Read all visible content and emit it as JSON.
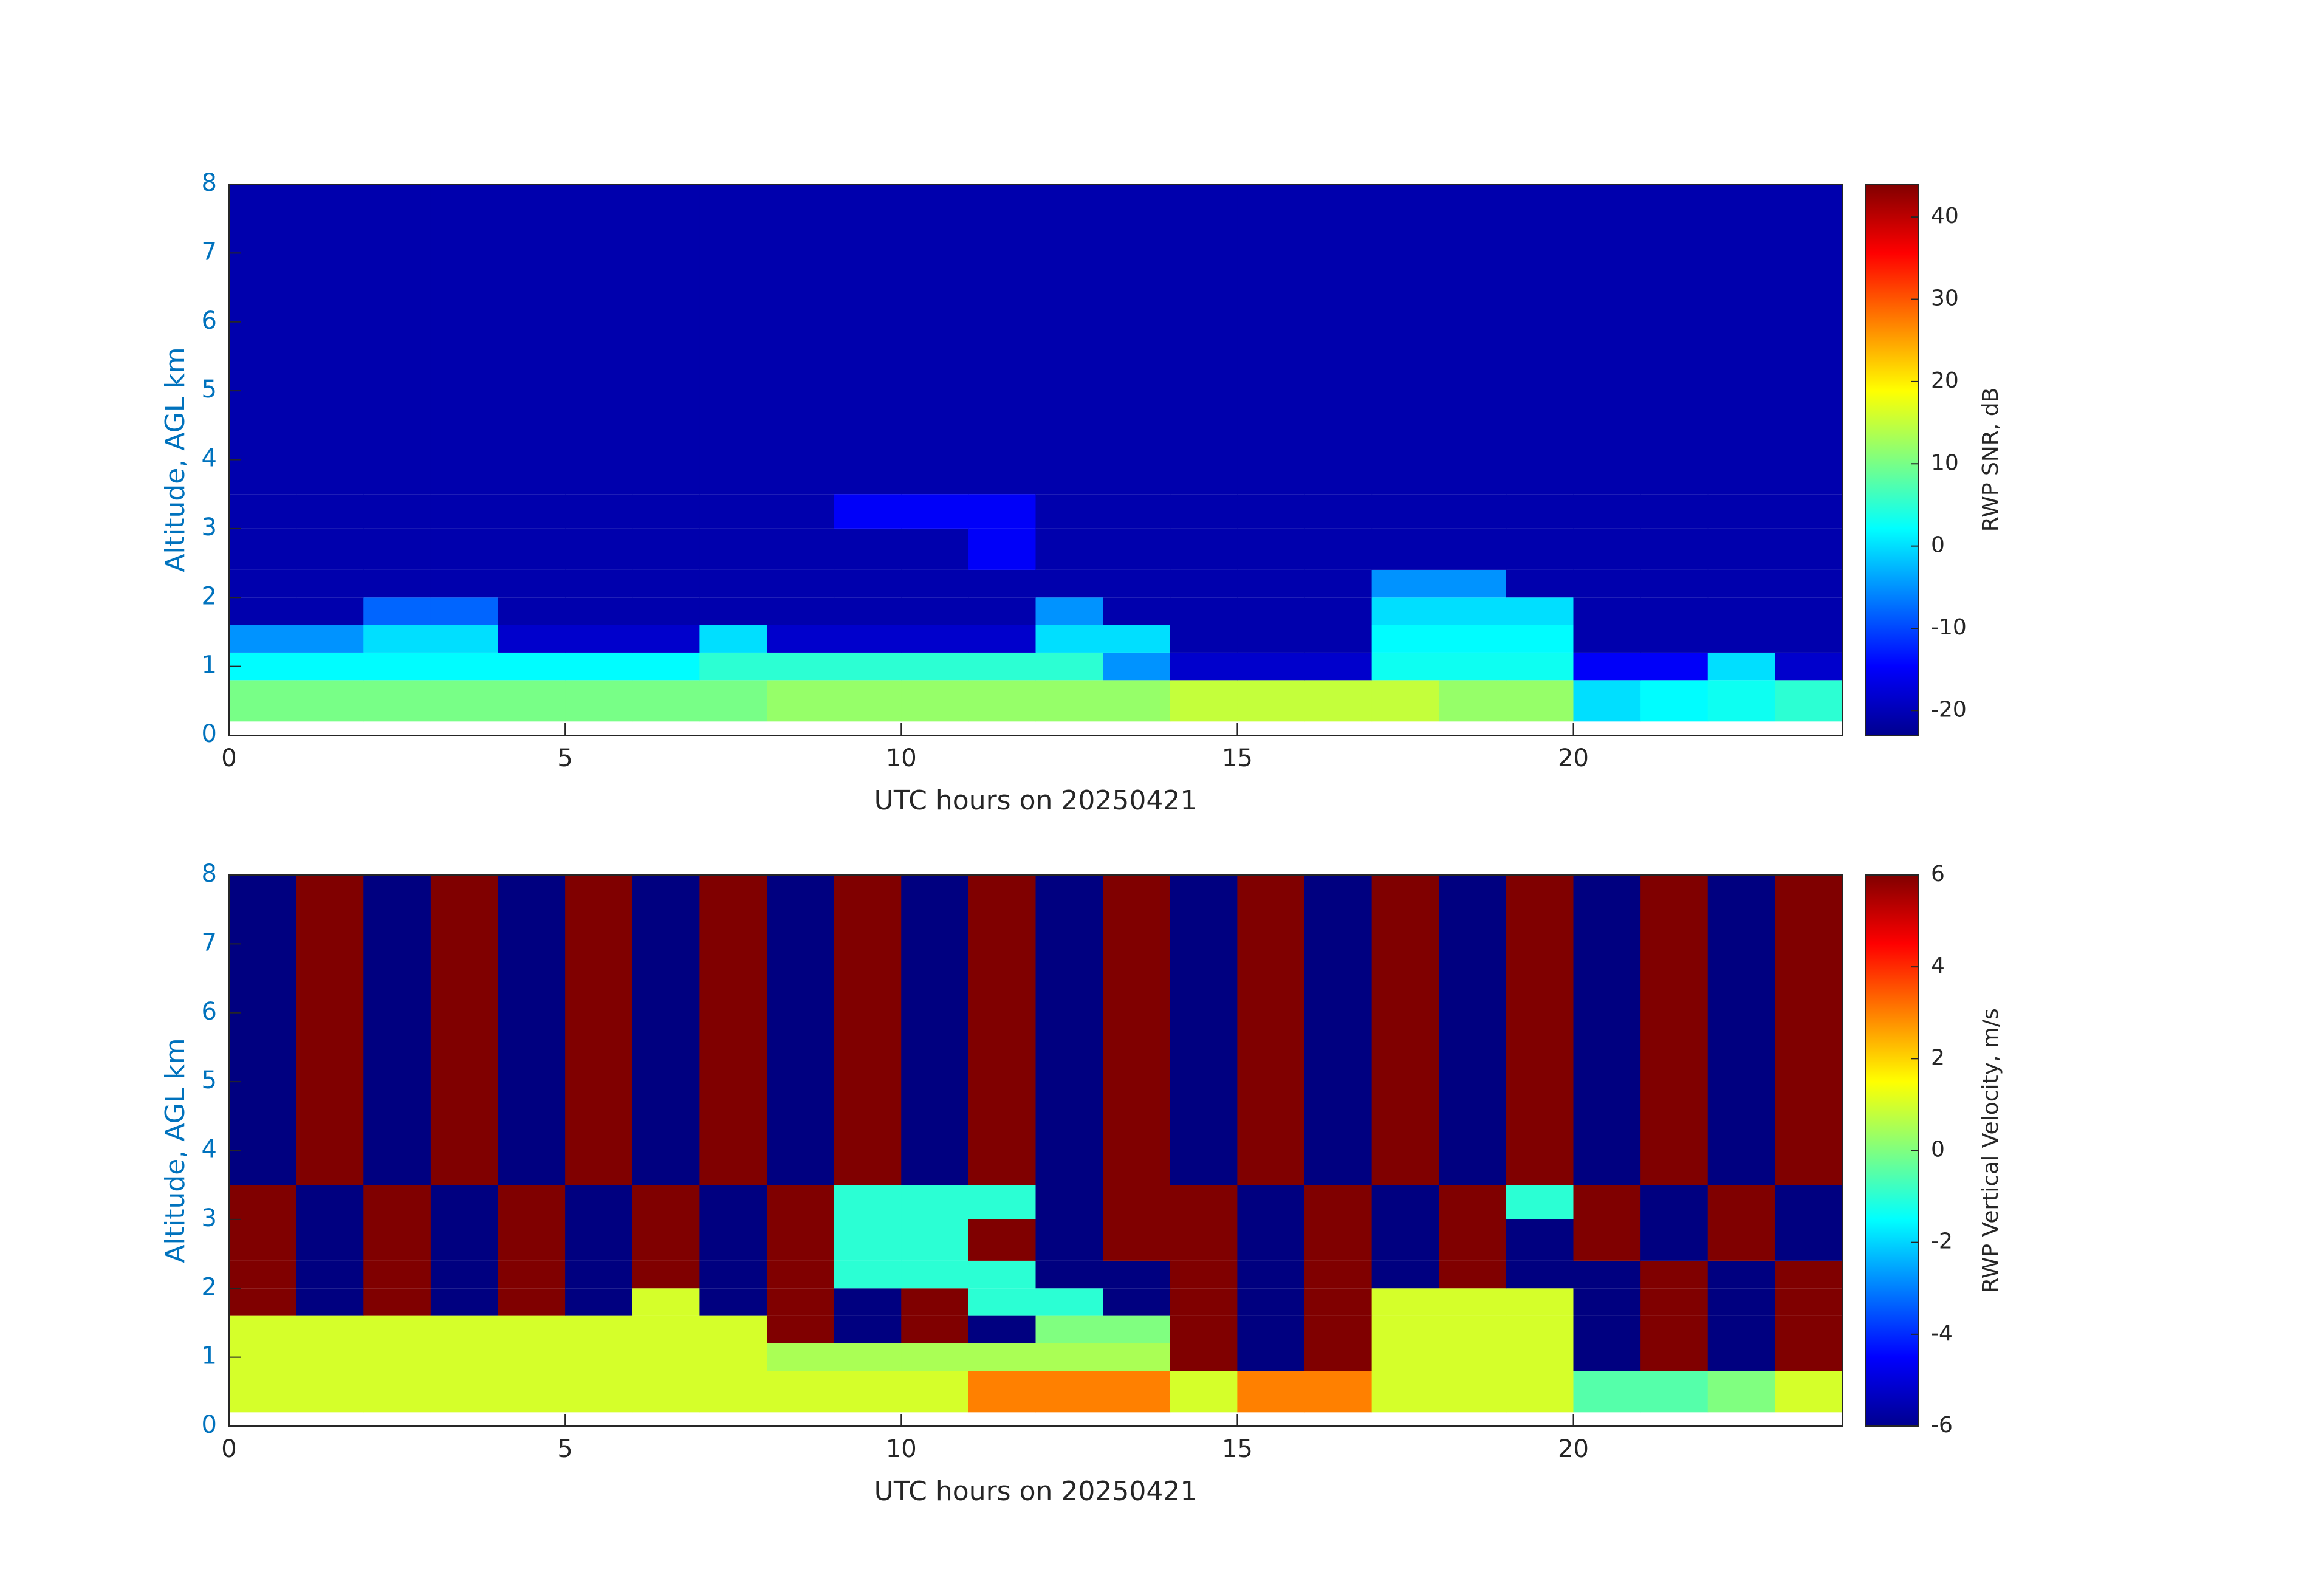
{
  "chart_data": [
    {
      "type": "heatmap",
      "xlabel": "UTC hours on 20250421",
      "ylabel": "Altitude, AGL km",
      "colorbar_label": "RWP SNR, dB",
      "colormap": "jet",
      "x": [
        0,
        1,
        2,
        3,
        4,
        5,
        6,
        7,
        8,
        9,
        10,
        11,
        12,
        13,
        14,
        15,
        16,
        17,
        18,
        19,
        20,
        21,
        22,
        23,
        24
      ],
      "y": [
        0.2,
        0.8,
        1.2,
        1.6,
        2,
        2.4,
        3,
        3.5,
        8
      ],
      "z": [
        [
          10,
          10,
          10,
          10,
          10,
          10,
          10,
          10,
          12,
          12,
          12,
          12,
          12,
          12,
          15,
          15,
          15,
          15,
          12,
          12,
          0,
          2,
          3,
          5
        ],
        [
          2,
          2,
          2,
          2,
          2,
          2,
          2,
          5,
          5,
          5,
          5,
          5,
          5,
          -5,
          -18,
          -18,
          -18,
          3,
          3,
          3,
          -15,
          -15,
          0,
          -18
        ],
        [
          -5,
          -5,
          0,
          0,
          -18,
          -18,
          -18,
          0,
          -18,
          -18,
          -18,
          -18,
          0,
          0,
          -20,
          -20,
          -20,
          2,
          2,
          2,
          -20,
          -20,
          -20,
          -20
        ],
        [
          -20,
          -20,
          -8,
          -8,
          -20,
          -20,
          -20,
          -20,
          -20,
          -20,
          -20,
          -20,
          -5,
          -20,
          -20,
          -20,
          -20,
          0,
          0,
          0,
          -20,
          -20,
          -20,
          -20
        ],
        [
          -20,
          -20,
          -20,
          -20,
          -20,
          -20,
          -20,
          -20,
          -20,
          -20,
          -20,
          -20,
          -20,
          -20,
          -20,
          -20,
          -20,
          -5,
          -5,
          -20,
          -20,
          -20,
          -20,
          -20
        ],
        [
          -20,
          -20,
          -20,
          -20,
          -20,
          -20,
          -20,
          -20,
          -20,
          -20,
          -20,
          -15,
          -20,
          -20,
          -20,
          -20,
          -20,
          -20,
          -20,
          -20,
          -20,
          -20,
          -20,
          -20
        ],
        [
          -20,
          -20,
          -20,
          -20,
          -20,
          -20,
          -20,
          -20,
          -20,
          -15,
          -15,
          -15,
          -20,
          -20,
          -20,
          -20,
          -20,
          -20,
          -20,
          -20,
          -20,
          -20,
          -20,
          -20
        ],
        [
          -20,
          -20,
          -20,
          -20,
          -20,
          -20,
          -20,
          -20,
          -20,
          -20,
          -20,
          -20,
          -20,
          -20,
          -20,
          -20,
          -20,
          -20,
          -20,
          -20,
          -20,
          -20,
          -20,
          -20
        ]
      ],
      "xlim": [
        0,
        24
      ],
      "ylim": [
        0,
        8
      ],
      "xticks": [
        0,
        5,
        10,
        15,
        20
      ],
      "yticks": [
        0,
        1,
        2,
        3,
        4,
        5,
        6,
        7,
        8
      ],
      "clim": [
        -23,
        44
      ],
      "cticks": [
        -20,
        -10,
        0,
        10,
        20,
        30,
        40
      ]
    },
    {
      "type": "heatmap",
      "xlabel": "UTC hours on 20250421",
      "ylabel": "Altitude, AGL km",
      "colorbar_label": "RWP Vertical Velocity, m/s",
      "colormap": "jet",
      "x": [
        0,
        1,
        2,
        3,
        4,
        5,
        6,
        7,
        8,
        9,
        10,
        11,
        12,
        13,
        14,
        15,
        16,
        17,
        18,
        19,
        20,
        21,
        22,
        23,
        24
      ],
      "y": [
        0.2,
        0.8,
        1.2,
        1.6,
        2,
        2.4,
        3,
        3.5,
        8
      ],
      "z": [
        [
          1,
          1,
          1,
          1,
          1,
          1,
          1,
          1,
          1,
          1,
          1,
          3,
          3,
          3,
          1,
          3,
          3,
          1,
          1,
          1,
          -0.5,
          -0.5,
          0,
          1
        ],
        [
          1,
          1,
          1,
          1,
          1,
          1,
          1,
          1,
          0.5,
          0.5,
          0.5,
          0.5,
          0.5,
          0.5,
          6,
          -6,
          6,
          1,
          1,
          1,
          -6,
          6,
          -6,
          6
        ],
        [
          1,
          1,
          1,
          1,
          1,
          1,
          1,
          1,
          6,
          -6,
          6,
          -6,
          0,
          0,
          6,
          -6,
          6,
          1,
          1,
          1,
          -6,
          6,
          -6,
          6
        ],
        [
          6,
          -6,
          6,
          -6,
          6,
          -6,
          1,
          -6,
          6,
          -6,
          6,
          -1,
          -1,
          -6,
          6,
          -6,
          6,
          1,
          1,
          1,
          -6,
          6,
          -6,
          6
        ],
        [
          6,
          -6,
          6,
          -6,
          6,
          -6,
          6,
          -6,
          6,
          -1,
          -1,
          -1,
          -6,
          -6,
          6,
          -6,
          6,
          -6,
          6,
          -6,
          -6,
          6,
          -6,
          6
        ],
        [
          6,
          -6,
          6,
          -6,
          6,
          -6,
          6,
          -6,
          6,
          -1,
          -1,
          6,
          -6,
          6,
          6,
          -6,
          6,
          -6,
          6,
          -6,
          6,
          -6,
          6,
          -6
        ],
        [
          6,
          -6,
          6,
          -6,
          6,
          -6,
          6,
          -6,
          6,
          -1,
          -1,
          -1,
          -6,
          6,
          6,
          -6,
          6,
          -6,
          6,
          -1,
          6,
          -6,
          6,
          -6
        ],
        [
          -6,
          6,
          -6,
          6,
          -6,
          6,
          -6,
          6,
          -6,
          6,
          -6,
          6,
          -6,
          6,
          -6,
          6,
          -6,
          6,
          -6,
          6,
          -6,
          6,
          -6,
          6
        ]
      ],
      "xlim": [
        0,
        24
      ],
      "ylim": [
        0,
        8
      ],
      "xticks": [
        0,
        5,
        10,
        15,
        20
      ],
      "yticks": [
        0,
        1,
        2,
        3,
        4,
        5,
        6,
        7,
        8
      ],
      "clim": [
        -6,
        6
      ],
      "cticks": [
        -6,
        -4,
        -2,
        0,
        2,
        4,
        6
      ]
    }
  ]
}
